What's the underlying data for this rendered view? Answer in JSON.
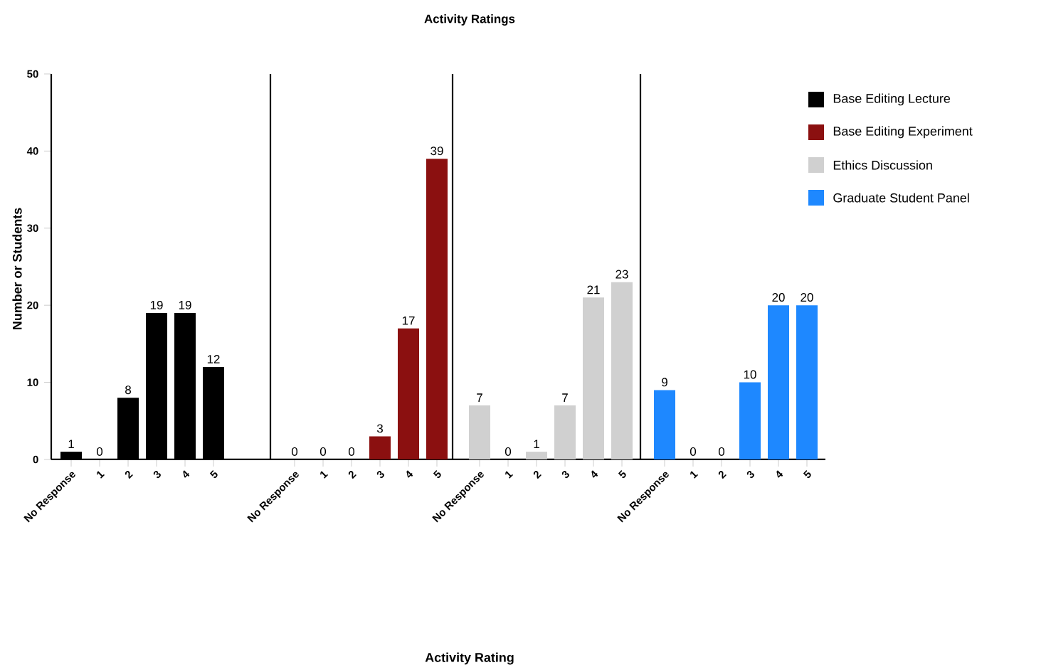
{
  "chart_data": [
    {
      "type": "bar",
      "ylabel": "Number or Students",
      "categories": [
        "No Response",
        "1",
        "2",
        "3",
        "4",
        "5"
      ],
      "ylim": [
        0,
        50
      ],
      "yticks": [
        0,
        10,
        20,
        30,
        40,
        50
      ],
      "data_labels": true,
      "legend": "right",
      "series": [
        {
          "name": "Base Editing Lecture",
          "color": "#000000",
          "values": [
            1,
            0,
            8,
            19,
            19,
            12
          ]
        }
      ]
    },
    {
      "type": "bar",
      "categories": [
        "No Response",
        "1",
        "2",
        "3",
        "4",
        "5"
      ],
      "ylim": [
        0,
        50
      ],
      "tick_labels": "x",
      "data_labels": true,
      "legend": "right",
      "series": [
        {
          "name": "Base Editing Experiment",
          "color": "#8b1010",
          "values": [
            0,
            0,
            0,
            3,
            17,
            39
          ]
        }
      ]
    },
    {
      "type": "bar",
      "title": "Activity Ratings",
      "xlabel": "Activity Rating",
      "categories": [
        "No Response",
        "1",
        "2",
        "3",
        "4",
        "5"
      ],
      "ylim": [
        0,
        50
      ],
      "tick_labels": "x",
      "data_labels": true,
      "legend": "right",
      "series": [
        {
          "name": "Ethics Discussion",
          "color": "#d0d0d0",
          "values": [
            7,
            0,
            1,
            7,
            21,
            23
          ]
        }
      ]
    },
    {
      "type": "bar",
      "categories": [
        "No Response",
        "1",
        "2",
        "3",
        "4",
        "5"
      ],
      "ylim": [
        0,
        50
      ],
      "tick_labels": "x",
      "data_labels": true,
      "legend": "right",
      "series": [
        {
          "name": "Graduate Student Panel",
          "color": "#1e88ff",
          "values": [
            9,
            0,
            0,
            10,
            20,
            20
          ]
        }
      ]
    }
  ]
}
